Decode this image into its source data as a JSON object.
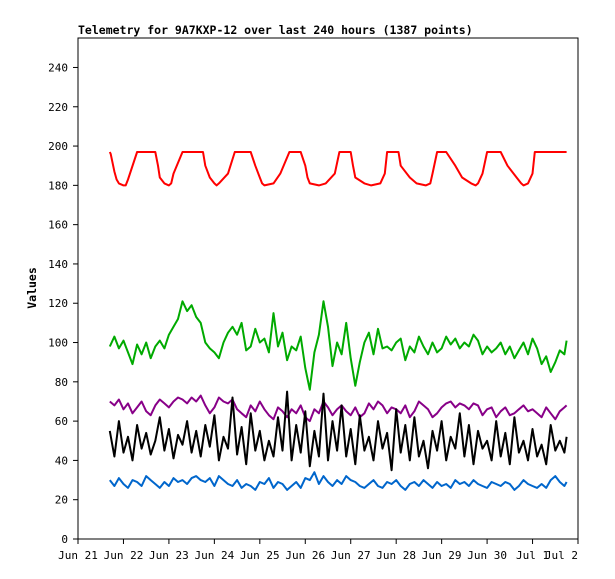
{
  "chart_data": {
    "type": "line",
    "title": "Telemetry for 9A7KXP-12 over last 240 hours (1387 points)",
    "ylabel": "Values",
    "xlabel": "",
    "ylim": [
      0,
      255
    ],
    "yticks": [
      0,
      20,
      40,
      60,
      80,
      100,
      120,
      140,
      160,
      180,
      200,
      220,
      240
    ],
    "xlim_days": [
      0,
      11
    ],
    "xticks": [
      {
        "day": 0,
        "label": "Jun 21"
      },
      {
        "day": 1,
        "label": "Jun 22"
      },
      {
        "day": 2,
        "label": "Jun 23"
      },
      {
        "day": 3,
        "label": "Jun 24"
      },
      {
        "day": 4,
        "label": "Jun 25"
      },
      {
        "day": 5,
        "label": "Jun 26"
      },
      {
        "day": 6,
        "label": "Jun 27"
      },
      {
        "day": 7,
        "label": "Jun 28"
      },
      {
        "day": 8,
        "label": "Jun 29"
      },
      {
        "day": 9,
        "label": "Jun 30"
      },
      {
        "day": 10,
        "label": "Jul 1"
      },
      {
        "day": 11,
        "label": "Jul 2"
      }
    ],
    "grid": false,
    "series": [
      {
        "color": "#ff0000",
        "x": [
          0.7,
          0.72,
          0.8,
          0.85,
          0.9,
          1.0,
          1.05,
          1.1,
          1.3,
          1.45,
          1.6,
          1.7,
          1.76,
          1.8,
          1.9,
          2.0,
          2.05,
          2.1,
          2.3,
          2.45,
          2.65,
          2.75,
          2.8,
          2.9,
          3.0,
          3.05,
          3.1,
          3.3,
          3.45,
          3.65,
          3.75,
          3.8,
          3.9,
          4.0,
          4.05,
          4.1,
          4.3,
          4.45,
          4.65,
          4.75,
          4.8,
          4.9,
          5.0,
          5.05,
          5.1,
          5.3,
          5.45,
          5.65,
          5.75,
          5.8,
          5.9,
          6.0,
          6.05,
          6.1,
          6.3,
          6.45,
          6.65,
          6.75,
          6.8,
          6.9,
          7.0,
          7.05,
          7.1,
          7.3,
          7.45,
          7.65,
          7.75,
          7.8,
          7.9,
          8.0,
          8.05,
          8.1,
          8.3,
          8.45,
          8.65,
          8.75,
          8.8,
          8.9,
          9.0,
          9.05,
          9.1,
          9.3,
          9.45,
          9.65,
          9.75,
          9.8,
          9.9,
          10.0,
          10.05,
          10.1,
          10.3,
          10.45,
          10.65,
          10.75
        ],
        "y": [
          197,
          196,
          187,
          183,
          181,
          180,
          180,
          183,
          197,
          197,
          197,
          197,
          190,
          184,
          181,
          180,
          181,
          186,
          197,
          197,
          197,
          197,
          190,
          184,
          181,
          180,
          181,
          186,
          197,
          197,
          197,
          197,
          190,
          184,
          181,
          180,
          181,
          186,
          197,
          197,
          197,
          197,
          190,
          184,
          181,
          180,
          181,
          186,
          197,
          197,
          197,
          197,
          190,
          184,
          181,
          180,
          181,
          186,
          197,
          197,
          197,
          197,
          190,
          184,
          181,
          180,
          181,
          186,
          197,
          197,
          197,
          197,
          190,
          184,
          181,
          180,
          181,
          186,
          197,
          197,
          197,
          197,
          190,
          184,
          181,
          180,
          181,
          186,
          197,
          197,
          197,
          197,
          197,
          197
        ]
      },
      {
        "color": "#00aa00",
        "x": [
          0.7,
          0.8,
          0.9,
          1.0,
          1.1,
          1.2,
          1.3,
          1.4,
          1.5,
          1.6,
          1.7,
          1.8,
          1.9,
          2.0,
          2.1,
          2.2,
          2.3,
          2.4,
          2.5,
          2.6,
          2.7,
          2.8,
          2.9,
          3.0,
          3.1,
          3.2,
          3.3,
          3.4,
          3.5,
          3.6,
          3.7,
          3.8,
          3.9,
          4.0,
          4.1,
          4.2,
          4.3,
          4.4,
          4.5,
          4.6,
          4.7,
          4.8,
          4.9,
          5.0,
          5.1,
          5.2,
          5.3,
          5.4,
          5.5,
          5.6,
          5.7,
          5.8,
          5.9,
          6.0,
          6.1,
          6.2,
          6.3,
          6.4,
          6.5,
          6.6,
          6.7,
          6.8,
          6.9,
          7.0,
          7.1,
          7.2,
          7.3,
          7.4,
          7.5,
          7.6,
          7.7,
          7.8,
          7.9,
          8.0,
          8.1,
          8.2,
          8.3,
          8.4,
          8.5,
          8.6,
          8.7,
          8.8,
          8.9,
          9.0,
          9.1,
          9.2,
          9.3,
          9.4,
          9.5,
          9.6,
          9.7,
          9.8,
          9.9,
          10.0,
          10.1,
          10.2,
          10.3,
          10.4,
          10.5,
          10.6,
          10.7,
          10.75
        ],
        "y": [
          98,
          103,
          97,
          101,
          95,
          89,
          99,
          94,
          100,
          92,
          98,
          101,
          97,
          104,
          108,
          112,
          121,
          116,
          119,
          113,
          110,
          100,
          97,
          95,
          92,
          100,
          105,
          108,
          104,
          110,
          96,
          98,
          107,
          100,
          102,
          95,
          115,
          98,
          105,
          91,
          98,
          96,
          103,
          87,
          76,
          95,
          104,
          121,
          108,
          88,
          100,
          94,
          110,
          92,
          78,
          90,
          100,
          105,
          94,
          107,
          97,
          98,
          96,
          100,
          102,
          91,
          98,
          95,
          103,
          98,
          94,
          100,
          95,
          97,
          103,
          99,
          102,
          97,
          100,
          98,
          104,
          101,
          94,
          98,
          95,
          97,
          100,
          94,
          98,
          92,
          96,
          100,
          94,
          102,
          97,
          89,
          93,
          85,
          90,
          96,
          94,
          101
        ]
      },
      {
        "color": "#880088",
        "x": [
          0.7,
          0.8,
          0.9,
          1.0,
          1.1,
          1.2,
          1.3,
          1.4,
          1.5,
          1.6,
          1.7,
          1.8,
          1.9,
          2.0,
          2.1,
          2.2,
          2.3,
          2.4,
          2.5,
          2.6,
          2.7,
          2.8,
          2.9,
          3.0,
          3.1,
          3.2,
          3.3,
          3.4,
          3.5,
          3.6,
          3.7,
          3.8,
          3.9,
          4.0,
          4.1,
          4.2,
          4.3,
          4.4,
          4.5,
          4.6,
          4.7,
          4.8,
          4.9,
          5.0,
          5.1,
          5.2,
          5.3,
          5.4,
          5.5,
          5.6,
          5.7,
          5.8,
          5.9,
          6.0,
          6.1,
          6.2,
          6.3,
          6.4,
          6.5,
          6.6,
          6.7,
          6.8,
          6.9,
          7.0,
          7.1,
          7.2,
          7.3,
          7.4,
          7.5,
          7.6,
          7.7,
          7.8,
          7.9,
          8.0,
          8.1,
          8.2,
          8.3,
          8.4,
          8.5,
          8.6,
          8.7,
          8.8,
          8.9,
          9.0,
          9.1,
          9.2,
          9.3,
          9.4,
          9.5,
          9.6,
          9.7,
          9.8,
          9.9,
          10.0,
          10.1,
          10.2,
          10.3,
          10.4,
          10.5,
          10.6,
          10.7,
          10.75
        ],
        "y": [
          70,
          68,
          71,
          66,
          69,
          64,
          67,
          70,
          65,
          63,
          68,
          71,
          69,
          67,
          70,
          72,
          71,
          69,
          72,
          70,
          73,
          68,
          64,
          67,
          72,
          70,
          69,
          71,
          66,
          64,
          62,
          68,
          65,
          70,
          66,
          63,
          61,
          67,
          65,
          62,
          66,
          64,
          68,
          62,
          60,
          66,
          64,
          70,
          67,
          63,
          66,
          68,
          65,
          63,
          67,
          62,
          64,
          69,
          66,
          70,
          68,
          64,
          67,
          66,
          64,
          68,
          62,
          65,
          70,
          68,
          66,
          62,
          64,
          67,
          69,
          70,
          67,
          69,
          68,
          66,
          69,
          68,
          63,
          66,
          67,
          62,
          65,
          67,
          63,
          64,
          66,
          68,
          65,
          66,
          64,
          62,
          67,
          64,
          61,
          65,
          67,
          68
        ]
      },
      {
        "color": "#000000",
        "x": [
          0.7,
          0.8,
          0.9,
          1.0,
          1.1,
          1.2,
          1.3,
          1.4,
          1.5,
          1.6,
          1.7,
          1.8,
          1.9,
          2.0,
          2.1,
          2.2,
          2.3,
          2.4,
          2.5,
          2.6,
          2.7,
          2.8,
          2.9,
          3.0,
          3.1,
          3.2,
          3.3,
          3.4,
          3.5,
          3.6,
          3.7,
          3.8,
          3.9,
          4.0,
          4.1,
          4.2,
          4.3,
          4.4,
          4.5,
          4.6,
          4.7,
          4.8,
          4.9,
          5.0,
          5.1,
          5.2,
          5.3,
          5.4,
          5.5,
          5.6,
          5.7,
          5.8,
          5.9,
          6.0,
          6.1,
          6.2,
          6.3,
          6.4,
          6.5,
          6.6,
          6.7,
          6.8,
          6.9,
          7.0,
          7.1,
          7.2,
          7.3,
          7.4,
          7.5,
          7.6,
          7.7,
          7.8,
          7.9,
          8.0,
          8.1,
          8.2,
          8.3,
          8.4,
          8.5,
          8.6,
          8.7,
          8.8,
          8.9,
          9.0,
          9.1,
          9.2,
          9.3,
          9.4,
          9.5,
          9.6,
          9.7,
          9.8,
          9.9,
          10.0,
          10.1,
          10.2,
          10.3,
          10.4,
          10.5,
          10.6,
          10.7,
          10.75
        ],
        "y": [
          55,
          42,
          60,
          44,
          52,
          40,
          58,
          46,
          54,
          43,
          50,
          62,
          45,
          56,
          41,
          53,
          48,
          60,
          44,
          55,
          42,
          58,
          47,
          63,
          40,
          52,
          46,
          72,
          43,
          57,
          38,
          64,
          45,
          55,
          40,
          50,
          42,
          62,
          45,
          75,
          40,
          58,
          44,
          65,
          37,
          55,
          42,
          74,
          40,
          60,
          45,
          68,
          42,
          56,
          38,
          63,
          45,
          52,
          40,
          60,
          46,
          54,
          35,
          66,
          44,
          58,
          40,
          62,
          42,
          50,
          36,
          55,
          45,
          60,
          40,
          52,
          46,
          64,
          42,
          58,
          38,
          55,
          46,
          50,
          40,
          60,
          42,
          54,
          38,
          62,
          44,
          50,
          40,
          56,
          42,
          48,
          38,
          58,
          45,
          50,
          44,
          52
        ]
      },
      {
        "color": "#0066cc",
        "x": [
          0.7,
          0.8,
          0.9,
          1.0,
          1.1,
          1.2,
          1.3,
          1.4,
          1.5,
          1.6,
          1.7,
          1.8,
          1.9,
          2.0,
          2.1,
          2.2,
          2.3,
          2.4,
          2.5,
          2.6,
          2.7,
          2.8,
          2.9,
          3.0,
          3.1,
          3.2,
          3.3,
          3.4,
          3.5,
          3.6,
          3.7,
          3.8,
          3.9,
          4.0,
          4.1,
          4.2,
          4.3,
          4.4,
          4.5,
          4.6,
          4.7,
          4.8,
          4.9,
          5.0,
          5.1,
          5.2,
          5.3,
          5.4,
          5.5,
          5.6,
          5.7,
          5.8,
          5.9,
          6.0,
          6.1,
          6.2,
          6.3,
          6.4,
          6.5,
          6.6,
          6.7,
          6.8,
          6.9,
          7.0,
          7.1,
          7.2,
          7.3,
          7.4,
          7.5,
          7.6,
          7.7,
          7.8,
          7.9,
          8.0,
          8.1,
          8.2,
          8.3,
          8.4,
          8.5,
          8.6,
          8.7,
          8.8,
          8.9,
          9.0,
          9.1,
          9.2,
          9.3,
          9.4,
          9.5,
          9.6,
          9.7,
          9.8,
          9.9,
          10.0,
          10.1,
          10.2,
          10.3,
          10.4,
          10.5,
          10.6,
          10.7,
          10.75
        ],
        "y": [
          30,
          27,
          31,
          28,
          26,
          30,
          29,
          27,
          32,
          30,
          28,
          26,
          29,
          27,
          31,
          29,
          30,
          28,
          31,
          32,
          30,
          29,
          31,
          27,
          32,
          30,
          28,
          27,
          30,
          26,
          28,
          27,
          25,
          29,
          28,
          31,
          26,
          29,
          28,
          25,
          27,
          29,
          26,
          31,
          30,
          34,
          28,
          32,
          29,
          27,
          30,
          28,
          32,
          30,
          29,
          27,
          26,
          28,
          30,
          27,
          26,
          29,
          28,
          30,
          27,
          25,
          28,
          29,
          27,
          30,
          28,
          26,
          29,
          27,
          28,
          26,
          30,
          28,
          29,
          27,
          30,
          28,
          27,
          26,
          29,
          28,
          27,
          29,
          28,
          25,
          27,
          30,
          28,
          27,
          26,
          28,
          26,
          30,
          32,
          29,
          27,
          29
        ]
      }
    ]
  }
}
